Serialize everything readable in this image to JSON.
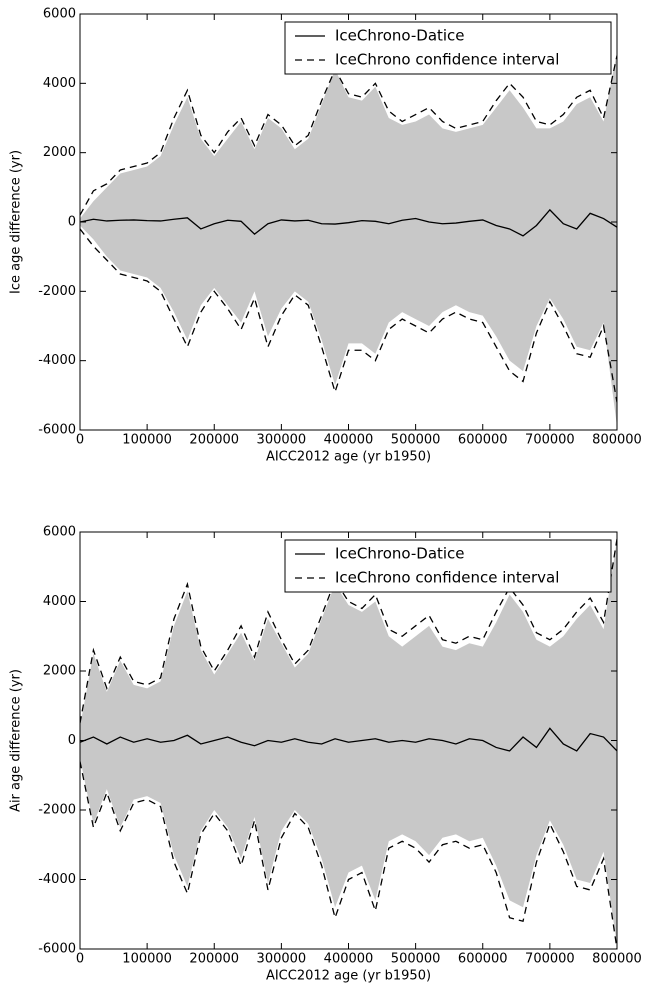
{
  "chart_data": [
    {
      "type": "line",
      "xlabel": "AICC2012 age (yr b1950)",
      "ylabel": "Ice age difference (yr)",
      "x": [
        0,
        20000,
        40000,
        60000,
        80000,
        100000,
        120000,
        140000,
        160000,
        180000,
        200000,
        220000,
        240000,
        260000,
        280000,
        300000,
        320000,
        340000,
        360000,
        380000,
        400000,
        420000,
        440000,
        460000,
        480000,
        500000,
        520000,
        540000,
        560000,
        580000,
        600000,
        620000,
        640000,
        660000,
        680000,
        700000,
        720000,
        740000,
        760000,
        780000,
        800000
      ],
      "xlim": [
        0,
        800000
      ],
      "xticks": [
        0,
        100000,
        200000,
        300000,
        400000,
        500000,
        600000,
        700000,
        800000
      ],
      "ylim": [
        -6000,
        6000
      ],
      "yticks": [
        -6000,
        -4000,
        -2000,
        0,
        2000,
        4000,
        6000
      ],
      "legend": "upper right",
      "band": {
        "color": "#c8c8c8",
        "upper": [
          100,
          600,
          1000,
          1400,
          1500,
          1600,
          1900,
          2800,
          3600,
          2400,
          1900,
          2400,
          2900,
          2100,
          3000,
          2700,
          2100,
          2400,
          3400,
          4400,
          3600,
          3500,
          3900,
          3000,
          2800,
          2900,
          3100,
          2700,
          2600,
          2700,
          2800,
          3300,
          3800,
          3300,
          2700,
          2700,
          2900,
          3400,
          3600,
          2900,
          4900
        ],
        "lower": [
          -100,
          -500,
          -1000,
          -1400,
          -1500,
          -1600,
          -1900,
          -2600,
          -3400,
          -2400,
          -1900,
          -2400,
          -2900,
          -2000,
          -3300,
          -2500,
          -2000,
          -2300,
          -3400,
          -4700,
          -3500,
          -3500,
          -3800,
          -2900,
          -2600,
          -2800,
          -3000,
          -2600,
          -2400,
          -2600,
          -2700,
          -3300,
          -4000,
          -4300,
          -3000,
          -2200,
          -2800,
          -3600,
          -3700,
          -2900,
          -5900
        ]
      },
      "series": [
        {
          "name": "IceChrono-Datice",
          "color": "#000000",
          "dash": "none",
          "values": [
            0,
            80,
            30,
            50,
            60,
            40,
            30,
            80,
            120,
            -200,
            -50,
            50,
            20,
            -350,
            -50,
            60,
            30,
            50,
            -50,
            -60,
            -20,
            40,
            20,
            -50,
            50,
            100,
            0,
            -50,
            -30,
            20,
            60,
            -100,
            -200,
            -400,
            -100,
            350,
            -50,
            -200,
            250,
            100,
            -150
          ]
        },
        {
          "name": "IceChrono confidence interval",
          "color": "#000000",
          "dash": "7,5",
          "upper": [
            200,
            900,
            1100,
            1500,
            1600,
            1700,
            2000,
            3000,
            3800,
            2500,
            2000,
            2600,
            3000,
            2200,
            3100,
            2800,
            2200,
            2500,
            3500,
            4400,
            3700,
            3600,
            4000,
            3200,
            2900,
            3100,
            3300,
            2900,
            2700,
            2800,
            2900,
            3500,
            4000,
            3600,
            2900,
            2800,
            3100,
            3600,
            3800,
            3000,
            4800
          ],
          "lower": [
            -200,
            -700,
            -1100,
            -1500,
            -1600,
            -1700,
            -2000,
            -2800,
            -3600,
            -2600,
            -2000,
            -2500,
            -3100,
            -2200,
            -3600,
            -2700,
            -2100,
            -2400,
            -3600,
            -4900,
            -3700,
            -3700,
            -4000,
            -3100,
            -2800,
            -3000,
            -3200,
            -2800,
            -2600,
            -2800,
            -2900,
            -3600,
            -4300,
            -4600,
            -3200,
            -2300,
            -3000,
            -3800,
            -3900,
            -3000,
            -5200
          ]
        }
      ]
    },
    {
      "type": "line",
      "xlabel": "AICC2012 age (yr b1950)",
      "ylabel": "Air age difference (yr)",
      "x": [
        0,
        20000,
        40000,
        60000,
        80000,
        100000,
        120000,
        140000,
        160000,
        180000,
        200000,
        220000,
        240000,
        260000,
        280000,
        300000,
        320000,
        340000,
        360000,
        380000,
        400000,
        420000,
        440000,
        460000,
        480000,
        500000,
        520000,
        540000,
        560000,
        580000,
        600000,
        620000,
        640000,
        660000,
        680000,
        700000,
        720000,
        740000,
        760000,
        780000,
        800000
      ],
      "xlim": [
        0,
        800000
      ],
      "xticks": [
        0,
        100000,
        200000,
        300000,
        400000,
        500000,
        600000,
        700000,
        800000
      ],
      "ylim": [
        -6000,
        6000
      ],
      "yticks": [
        -6000,
        -4000,
        -2000,
        0,
        2000,
        4000,
        6000
      ],
      "legend": "upper right",
      "band": {
        "color": "#c8c8c8",
        "upper": [
          400,
          2500,
          1400,
          2300,
          1600,
          1500,
          1700,
          3300,
          4300,
          2600,
          1900,
          2500,
          3100,
          2300,
          3500,
          2800,
          2100,
          2500,
          3500,
          4500,
          3900,
          3700,
          4000,
          3000,
          2700,
          3000,
          3300,
          2700,
          2600,
          2800,
          2700,
          3400,
          4200,
          3700,
          2900,
          2700,
          3000,
          3500,
          3900,
          3200,
          5800
        ],
        "lower": [
          -500,
          -2400,
          -1400,
          -2500,
          -1700,
          -1600,
          -1800,
          -3300,
          -4200,
          -2600,
          -2000,
          -2500,
          -3400,
          -2200,
          -4100,
          -2600,
          -2000,
          -2400,
          -3400,
          -4800,
          -3800,
          -3600,
          -4600,
          -2900,
          -2700,
          -2900,
          -3300,
          -2800,
          -2700,
          -2900,
          -2800,
          -3600,
          -4600,
          -4800,
          -3300,
          -2300,
          -3000,
          -4000,
          -4100,
          -3200,
          -5900
        ]
      },
      "series": [
        {
          "name": "IceChrono-Datice",
          "color": "#000000",
          "dash": "none",
          "values": [
            -50,
            100,
            -100,
            100,
            -50,
            50,
            -50,
            0,
            150,
            -100,
            0,
            100,
            -50,
            -150,
            0,
            -50,
            50,
            -50,
            -100,
            50,
            -50,
            0,
            50,
            -50,
            0,
            -50,
            50,
            0,
            -100,
            50,
            0,
            -200,
            -300,
            100,
            -200,
            350,
            -100,
            -300,
            200,
            100,
            -300
          ]
        },
        {
          "name": "IceChrono confidence interval",
          "color": "#000000",
          "dash": "7,5",
          "upper": [
            500,
            2600,
            1500,
            2400,
            1700,
            1600,
            1800,
            3500,
            4500,
            2700,
            2000,
            2600,
            3300,
            2400,
            3700,
            2900,
            2200,
            2600,
            3600,
            4600,
            4000,
            3800,
            4200,
            3200,
            3000,
            3300,
            3600,
            2900,
            2800,
            3000,
            2900,
            3700,
            4400,
            3900,
            3100,
            2900,
            3200,
            3700,
            4100,
            3400,
            5800
          ],
          "lower": [
            -600,
            -2500,
            -1500,
            -2600,
            -1800,
            -1700,
            -1900,
            -3500,
            -4400,
            -2700,
            -2100,
            -2600,
            -3600,
            -2300,
            -4300,
            -2800,
            -2100,
            -2500,
            -3600,
            -5100,
            -4000,
            -3800,
            -4900,
            -3100,
            -2900,
            -3100,
            -3500,
            -3000,
            -2900,
            -3100,
            -3000,
            -3800,
            -5100,
            -5200,
            -3500,
            -2400,
            -3200,
            -4200,
            -4300,
            -3400,
            -6000
          ]
        }
      ]
    }
  ]
}
